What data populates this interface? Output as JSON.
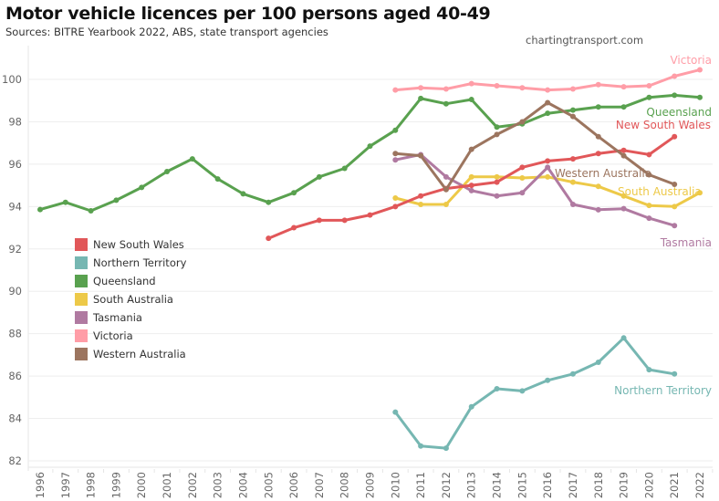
{
  "header": {
    "title": "Motor vehicle licences per 100 persons aged 40-49",
    "subtitle": "Sources: BITRE Yearbook 2022, ABS, state transport agencies",
    "credit": "chartingtransport.com"
  },
  "chart_data": {
    "type": "line",
    "title": "Motor vehicle licences per 100 persons aged 40-49",
    "subtitle": "Sources: BITRE Yearbook 2022, ABS, state transport agencies",
    "xlabel": "",
    "ylabel": "",
    "x": [
      1996,
      1997,
      1998,
      1999,
      2000,
      2001,
      2002,
      2003,
      2004,
      2005,
      2006,
      2007,
      2008,
      2009,
      2010,
      2011,
      2012,
      2013,
      2014,
      2015,
      2016,
      2017,
      2018,
      2019,
      2020,
      2021,
      2022
    ],
    "x_tick_labels": [
      "1996",
      "1997",
      "1998",
      "1999",
      "2000",
      "2001",
      "2002",
      "2003",
      "2004",
      "2005",
      "2006",
      "2007",
      "2008",
      "2009",
      "2010",
      "2011",
      "2012",
      "2013",
      "2014",
      "2015",
      "2016",
      "2017",
      "2018",
      "2019",
      "2020",
      "2021",
      "2022"
    ],
    "ylim": [
      81.8,
      101.1
    ],
    "y_ticks": [
      82,
      84,
      86,
      88,
      90,
      92,
      94,
      96,
      98,
      100
    ],
    "grid": true,
    "legend_position": "left-middle",
    "series": [
      {
        "name": "New South Wales",
        "color": "#e15759",
        "label_end": "New South Wales",
        "points": [
          [
            2005,
            92.5
          ],
          [
            2006,
            93.0
          ],
          [
            2007,
            93.35
          ],
          [
            2008,
            93.35
          ],
          [
            2009,
            93.6
          ],
          [
            2010,
            94.0
          ],
          [
            2011,
            94.5
          ],
          [
            2012,
            94.85
          ],
          [
            2013,
            95.0
          ],
          [
            2014,
            95.15
          ],
          [
            2015,
            95.85
          ],
          [
            2016,
            96.15
          ],
          [
            2017,
            96.25
          ],
          [
            2018,
            96.5
          ],
          [
            2019,
            96.65
          ],
          [
            2020,
            96.45
          ],
          [
            2021,
            97.3
          ]
        ]
      },
      {
        "name": "Northern Territory",
        "color": "#76b7b2",
        "label_end": "Northern Territory",
        "points": [
          [
            2010,
            84.3
          ],
          [
            2011,
            82.7
          ],
          [
            2012,
            82.6
          ],
          [
            2013,
            84.55
          ],
          [
            2014,
            85.4
          ],
          [
            2015,
            85.3
          ],
          [
            2016,
            85.8
          ],
          [
            2017,
            86.1
          ],
          [
            2018,
            86.65
          ],
          [
            2019,
            87.8
          ],
          [
            2020,
            86.3
          ],
          [
            2021,
            86.1
          ]
        ]
      },
      {
        "name": "Queensland",
        "color": "#59a14f",
        "label_end": "Queensland",
        "points": [
          [
            1996,
            93.86
          ],
          [
            1997,
            94.2
          ],
          [
            1998,
            93.8
          ],
          [
            1999,
            94.3
          ],
          [
            2000,
            94.9
          ],
          [
            2001,
            95.65
          ],
          [
            2002,
            96.25
          ],
          [
            2003,
            95.3
          ],
          [
            2004,
            94.6
          ],
          [
            2005,
            94.2
          ],
          [
            2006,
            94.65
          ],
          [
            2007,
            95.4
          ],
          [
            2008,
            95.8
          ],
          [
            2009,
            96.85
          ],
          [
            2010,
            97.6
          ],
          [
            2011,
            99.1
          ],
          [
            2012,
            98.85
          ],
          [
            2013,
            99.05
          ],
          [
            2014,
            97.75
          ],
          [
            2015,
            97.9
          ],
          [
            2016,
            98.4
          ],
          [
            2017,
            98.55
          ],
          [
            2018,
            98.7
          ],
          [
            2019,
            98.7
          ],
          [
            2020,
            99.15
          ],
          [
            2021,
            99.25
          ],
          [
            2022,
            99.15
          ]
        ]
      },
      {
        "name": "South Australia",
        "color": "#edc948",
        "label_end": "South Australia",
        "points": [
          [
            2010,
            94.4
          ],
          [
            2011,
            94.1
          ],
          [
            2012,
            94.1
          ],
          [
            2013,
            95.4
          ],
          [
            2014,
            95.4
          ],
          [
            2015,
            95.35
          ],
          [
            2016,
            95.4
          ],
          [
            2017,
            95.15
          ],
          [
            2018,
            94.95
          ],
          [
            2019,
            94.5
          ],
          [
            2020,
            94.05
          ],
          [
            2021,
            94.0
          ],
          [
            2022,
            94.65
          ]
        ]
      },
      {
        "name": "Tasmania",
        "color": "#b07aa1",
        "label_end": "Tasmania",
        "points": [
          [
            2010,
            96.2
          ],
          [
            2011,
            96.45
          ],
          [
            2012,
            95.4
          ],
          [
            2013,
            94.75
          ],
          [
            2014,
            94.5
          ],
          [
            2015,
            94.65
          ],
          [
            2016,
            95.85
          ],
          [
            2017,
            94.1
          ],
          [
            2018,
            93.85
          ],
          [
            2019,
            93.9
          ],
          [
            2020,
            93.45
          ],
          [
            2021,
            93.1
          ]
        ]
      },
      {
        "name": "Victoria",
        "color": "#ff9da7",
        "label_end": "Victoria",
        "points": [
          [
            2010,
            99.5
          ],
          [
            2011,
            99.6
          ],
          [
            2012,
            99.55
          ],
          [
            2013,
            99.8
          ],
          [
            2014,
            99.7
          ],
          [
            2015,
            99.6
          ],
          [
            2016,
            99.5
          ],
          [
            2017,
            99.55
          ],
          [
            2018,
            99.75
          ],
          [
            2019,
            99.65
          ],
          [
            2020,
            99.7
          ],
          [
            2021,
            100.15
          ],
          [
            2022,
            100.45
          ]
        ]
      },
      {
        "name": "Western Australia",
        "color": "#9c755f",
        "label_end": "Western Australia",
        "points": [
          [
            2010,
            96.5
          ],
          [
            2011,
            96.4
          ],
          [
            2012,
            94.8
          ],
          [
            2013,
            96.7
          ],
          [
            2014,
            97.4
          ],
          [
            2015,
            98.0
          ],
          [
            2016,
            98.9
          ],
          [
            2017,
            98.25
          ],
          [
            2018,
            97.3
          ],
          [
            2019,
            96.4
          ],
          [
            2020,
            95.5
          ],
          [
            2021,
            95.05
          ]
        ]
      }
    ]
  },
  "legend": {
    "items": [
      {
        "label": "New South Wales",
        "color": "#e15759"
      },
      {
        "label": "Northern Territory",
        "color": "#76b7b2"
      },
      {
        "label": "Queensland",
        "color": "#59a14f"
      },
      {
        "label": "South Australia",
        "color": "#edc948"
      },
      {
        "label": "Tasmania",
        "color": "#b07aa1"
      },
      {
        "label": "Victoria",
        "color": "#ff9da7"
      },
      {
        "label": "Western Australia",
        "color": "#9c755f"
      }
    ]
  }
}
